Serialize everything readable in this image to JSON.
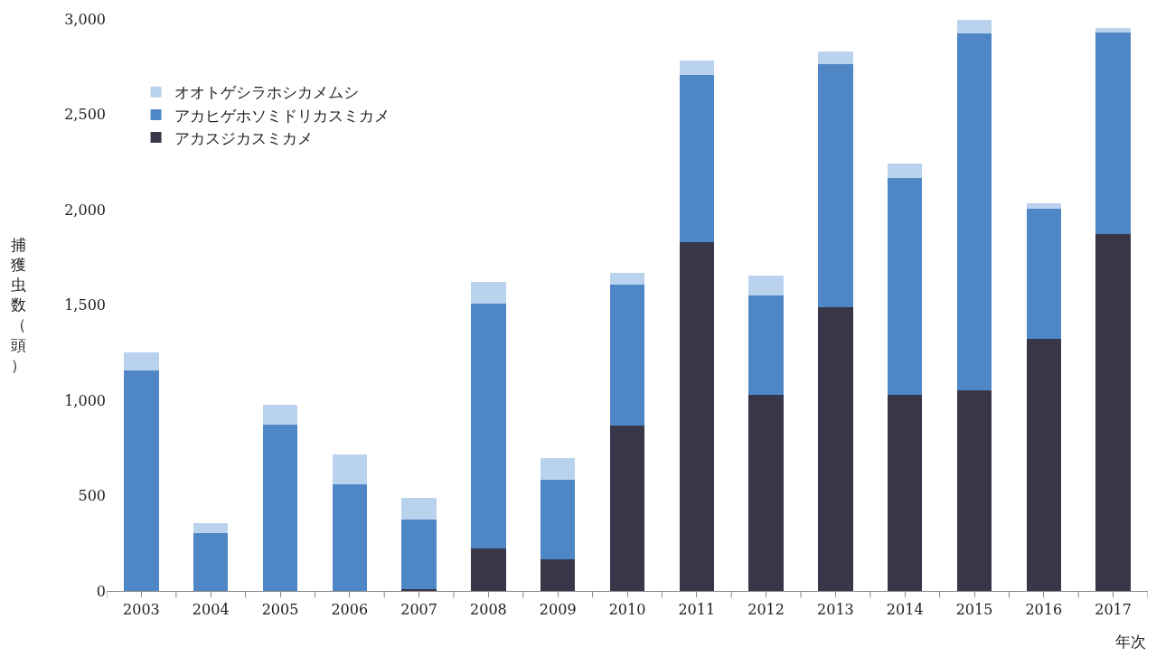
{
  "chart_data": {
    "type": "bar",
    "stacked": true,
    "xlabel": "年次",
    "ylabel": "捕獲虫数（頭）",
    "categories": [
      "2003",
      "2004",
      "2005",
      "2006",
      "2007",
      "2008",
      "2009",
      "2010",
      "2011",
      "2012",
      "2013",
      "2014",
      "2015",
      "2016",
      "2017"
    ],
    "series": [
      {
        "name": "アカスジカスミカメ",
        "color": "#373749",
        "values": [
          0,
          0,
          0,
          0,
          8,
          225,
          165,
          865,
          1830,
          1030,
          1490,
          1030,
          1050,
          1320,
          1870
        ]
      },
      {
        "name": "アカヒゲホソミドリカスミカメ",
        "color": "#4f87c6",
        "values": [
          1155,
          305,
          870,
          560,
          367,
          1280,
          420,
          740,
          875,
          520,
          1275,
          1135,
          1875,
          685,
          1060
        ]
      },
      {
        "name": "オオトゲシラホシカメムシ",
        "color": "#b9d3ee",
        "values": [
          95,
          50,
          105,
          155,
          115,
          115,
          110,
          65,
          75,
          105,
          65,
          75,
          70,
          30,
          25
        ]
      }
    ],
    "ylim": [
      0,
      3000
    ],
    "yticks": [
      {
        "value": 0,
        "label": "0"
      },
      {
        "value": 500,
        "label": "500"
      },
      {
        "value": 1000,
        "label": "1,000"
      },
      {
        "value": 1500,
        "label": "1,500"
      },
      {
        "value": 2000,
        "label": "2,000"
      },
      {
        "value": 2500,
        "label": "2,500"
      },
      {
        "value": 3000,
        "label": "3,000"
      }
    ],
    "legend": "top left"
  }
}
